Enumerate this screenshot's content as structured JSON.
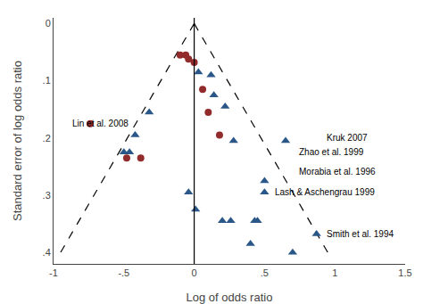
{
  "chart_data": {
    "type": "scatter",
    "xlabel": "Log of odds ratio",
    "ylabel": "Standard error of log odds ratio",
    "xlim": [
      -1,
      1.5
    ],
    "ylim": [
      0.42,
      -0.01
    ],
    "xticks": [
      -1,
      {
        "value": -0.5,
        "label": "-.5"
      },
      0,
      {
        "value": 0.5,
        "label": ".5"
      },
      1,
      1.5
    ],
    "yticks": [
      0,
      {
        "value": 0.1,
        "label": ".1"
      },
      {
        "value": 0.2,
        "label": ".2"
      },
      {
        "value": 0.3,
        "label": ".3"
      },
      {
        "value": 0.4,
        "label": ".4"
      }
    ],
    "grid": false,
    "series": [
      {
        "marker": "triangle",
        "color": "#2a5788",
        "x": [
          0.03,
          0.12,
          -0.32,
          -0.42,
          -0.5,
          -0.46,
          0.14,
          0.22,
          -0.04,
          0.01,
          0.28,
          0.5,
          0.65,
          0.5,
          0.43,
          0.2,
          0.26,
          0.4,
          0.45,
          0.7,
          0.87
        ],
        "values": [
          0.085,
          0.09,
          0.155,
          0.195,
          0.225,
          0.225,
          0.125,
          0.145,
          0.295,
          0.325,
          0.205,
          0.295,
          0.205,
          0.275,
          0.345,
          0.345,
          0.345,
          0.385,
          0.345,
          0.4,
          0.368
        ]
      },
      {
        "marker": "circle",
        "color": "#922b2b",
        "x": [
          -0.1,
          -0.06,
          -0.04,
          0.0,
          0.06,
          0.1,
          0.18,
          -0.38,
          -0.48,
          -0.74
        ],
        "values": [
          0.055,
          0.055,
          0.062,
          0.068,
          0.115,
          0.155,
          0.195,
          0.235,
          0.235,
          0.175
        ]
      }
    ],
    "funnel": {
      "apex_x": 0.0,
      "apex_y": 0.0,
      "base_left_x": -0.95,
      "base_right_x": 0.95,
      "base_y": 0.4,
      "color": "#000000",
      "line_style": "dashed"
    },
    "reference_line": {
      "x": 0,
      "color": "#000000"
    },
    "annotations": [
      {
        "text": "Lin et al. 2008",
        "x": -0.88,
        "y": 0.175
      },
      {
        "text": "Kruk 2007",
        "x": 0.93,
        "y": 0.2
      },
      {
        "text": "Zhao et al. 1999",
        "x": 0.73,
        "y": 0.225
      },
      {
        "text": "Morabia et al. 1996",
        "x": 0.73,
        "y": 0.258
      },
      {
        "text": "Lash & Aschengrau 1999",
        "x": 0.56,
        "y": 0.295
      },
      {
        "text": "Smith et al. 1994",
        "x": 0.93,
        "y": 0.368
      }
    ]
  }
}
